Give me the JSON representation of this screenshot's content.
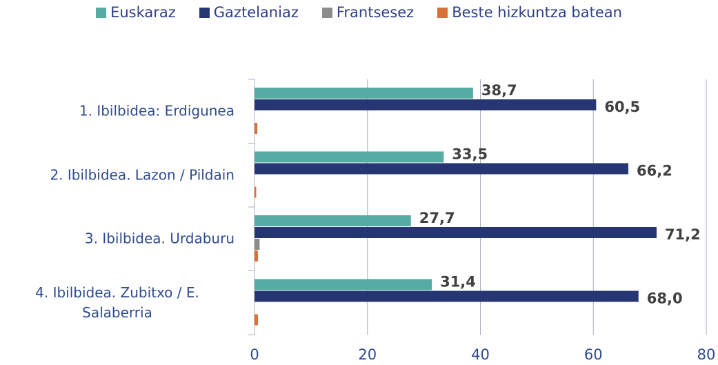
{
  "chart_data": {
    "type": "hbar",
    "categories": [
      "1. Ibilbidea: Erdigunea",
      "2. Ibilbidea. Lazon / Pildain",
      "3. Ibilbidea. Urdaburu",
      "4. Ibilbidea. Zubitxo / E. Salaberria"
    ],
    "series": [
      {
        "name": "Euskaraz",
        "color": "#56aba4",
        "values": [
          38.7,
          33.5,
          27.7,
          31.4
        ],
        "value_labels": [
          "38,7",
          "33,5",
          "27,7",
          "31,4"
        ]
      },
      {
        "name": "Gaztelaniaz",
        "color": "#263672",
        "values": [
          60.5,
          66.2,
          71.2,
          68.0
        ],
        "value_labels": [
          "60,5",
          "66,2",
          "71,2",
          "68,0"
        ]
      },
      {
        "name": "Frantsesez",
        "color": "#8c8c8c",
        "values": [
          0,
          0,
          0.9,
          0
        ]
      },
      {
        "name": "Beste hizkuntza batean",
        "color": "#d9703a",
        "values": [
          0.5,
          0.3,
          0.6,
          0.6
        ]
      }
    ],
    "xlim": [
      0,
      80
    ],
    "xticks": [
      0,
      20,
      40,
      60,
      80
    ],
    "grid": true,
    "legend": "top"
  }
}
